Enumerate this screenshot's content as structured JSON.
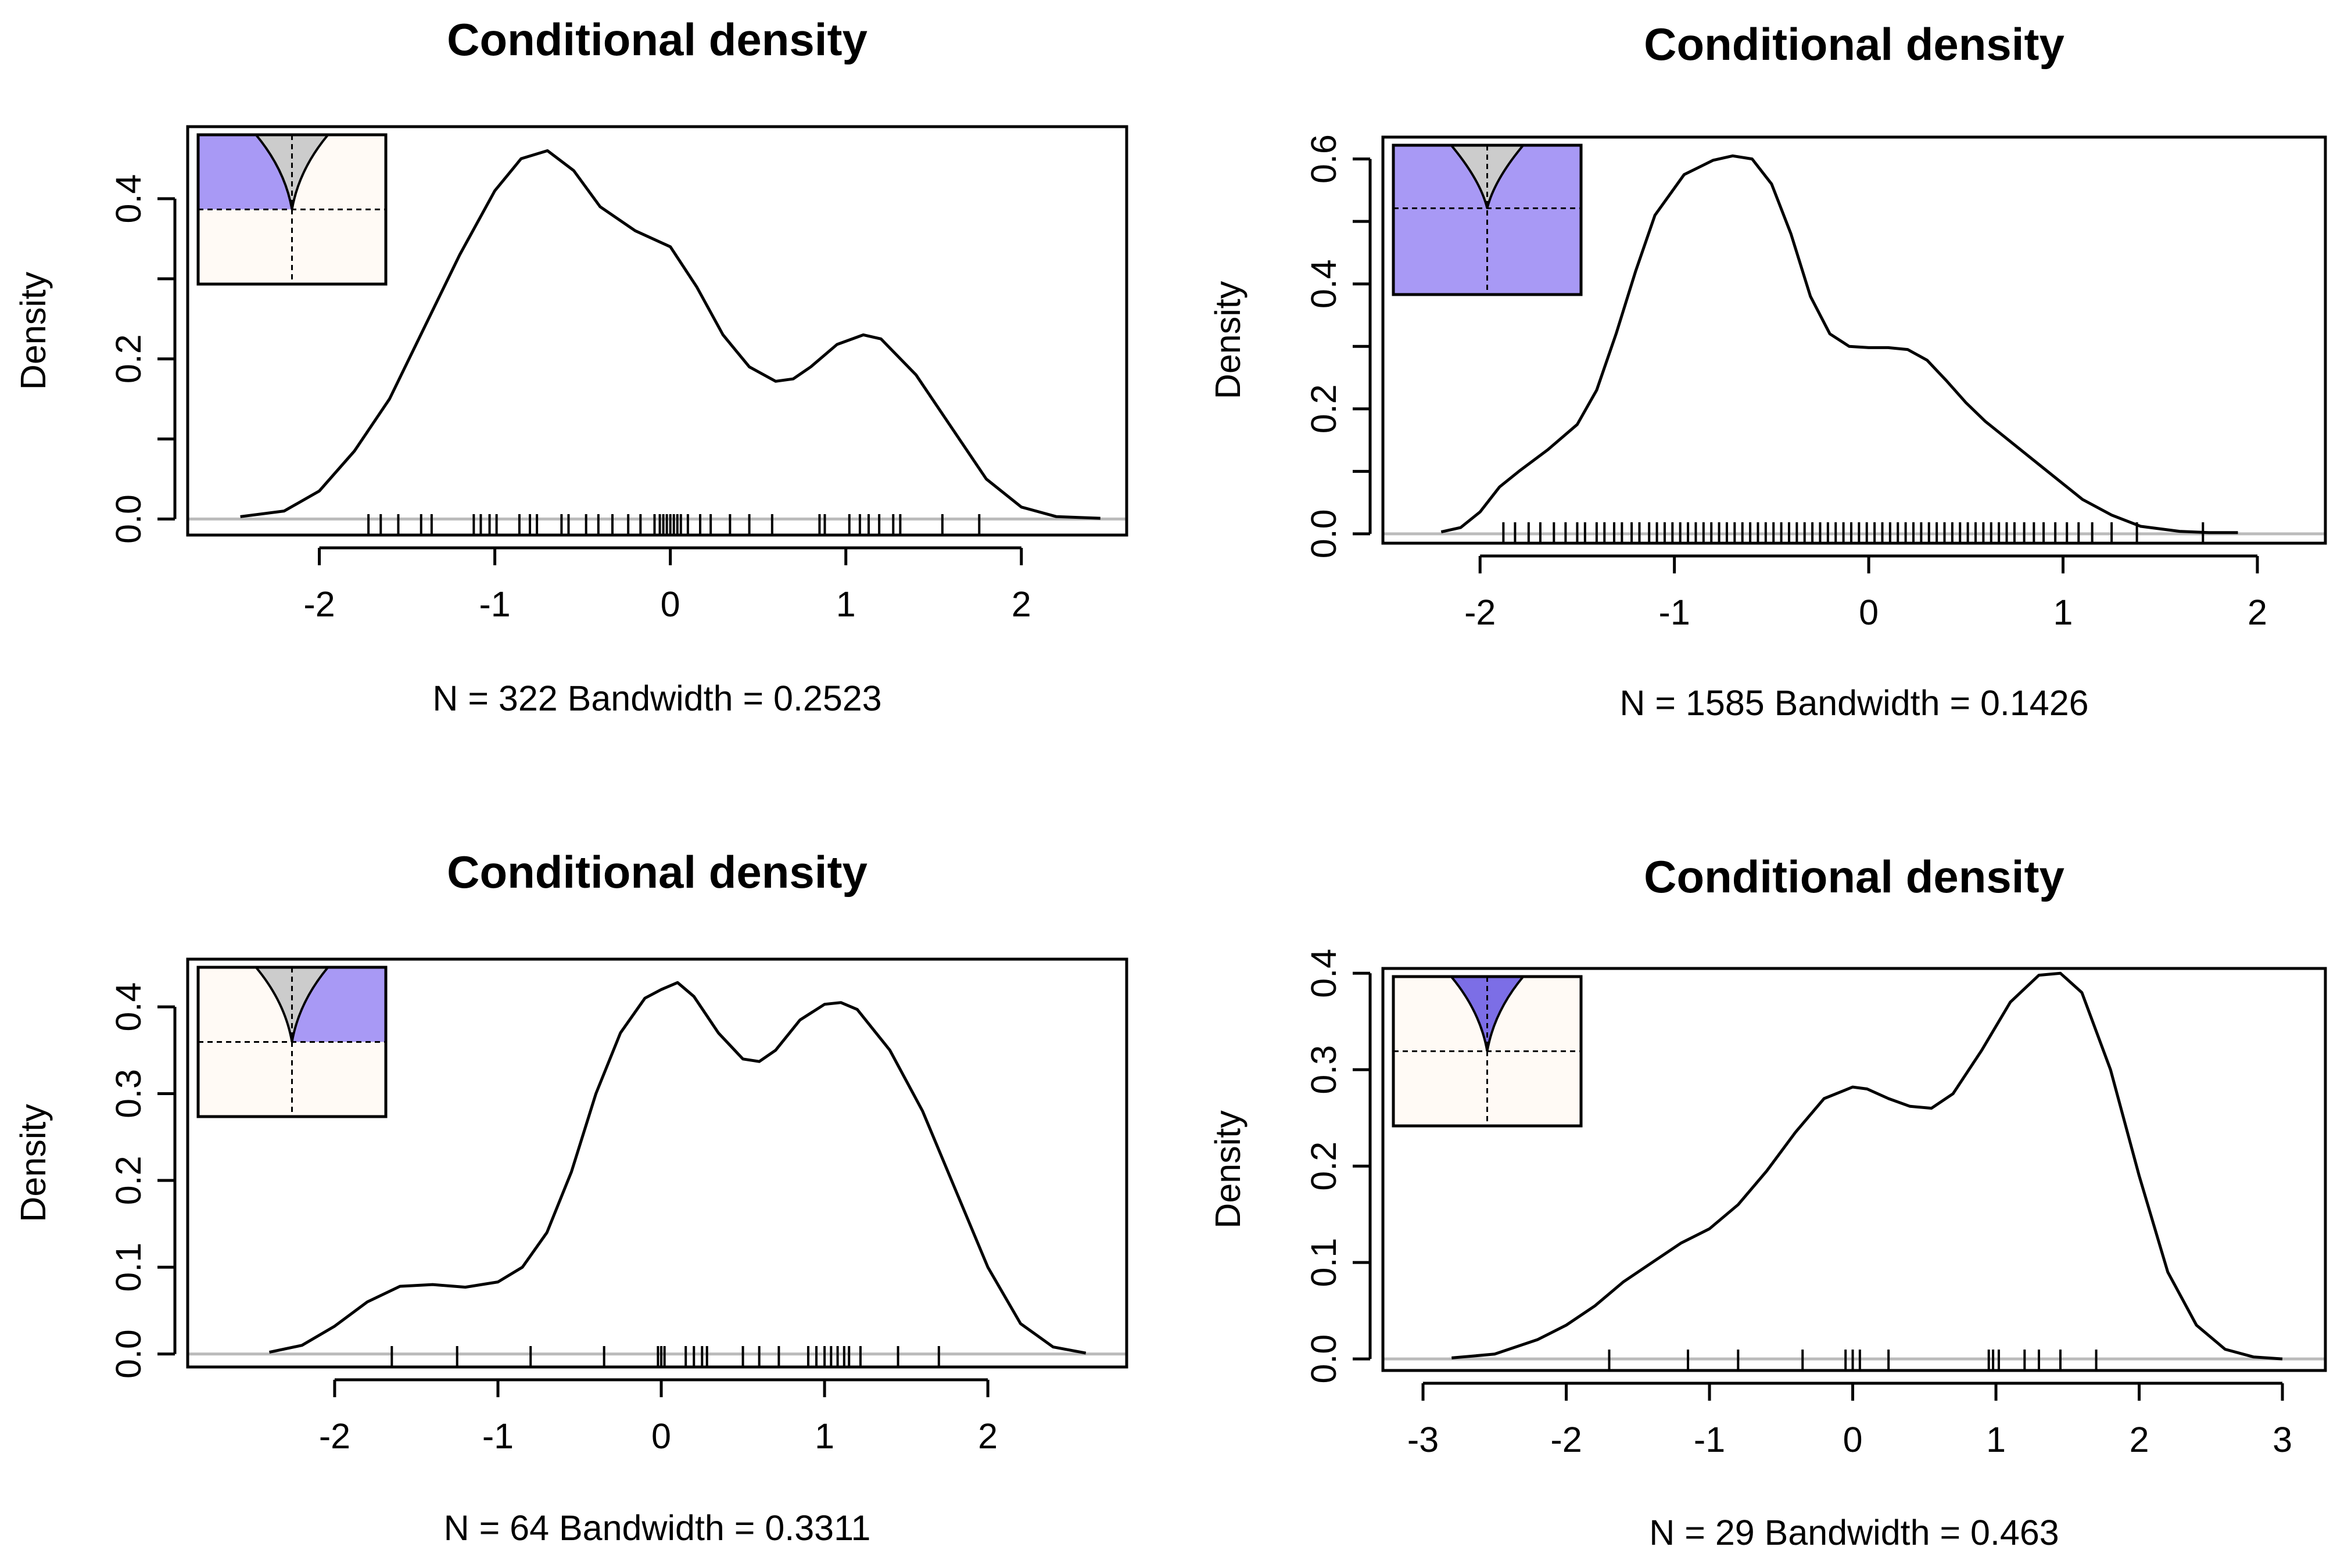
{
  "chart_data": [
    {
      "type": "line",
      "title": "Conditional density",
      "xlabel": "N = 322   Bandwidth = 0.2523",
      "ylabel": "Density",
      "xlim": [
        -2.75,
        2.6
      ],
      "ylim": [
        -0.02,
        0.49
      ],
      "xticks": [
        -2,
        -1,
        0,
        1,
        2
      ],
      "yticks": [
        0.0,
        0.2,
        0.4
      ],
      "yminor": [
        0.1,
        0.3
      ],
      "x": [
        -2.45,
        -2.2,
        -2.0,
        -1.8,
        -1.6,
        -1.4,
        -1.2,
        -1.0,
        -0.85,
        -0.7,
        -0.55,
        -0.4,
        -0.2,
        0.0,
        0.15,
        0.3,
        0.45,
        0.6,
        0.7,
        0.8,
        0.95,
        1.1,
        1.2,
        1.4,
        1.6,
        1.8,
        2.0,
        2.2,
        2.45
      ],
      "y": [
        0.003,
        0.01,
        0.035,
        0.085,
        0.15,
        0.24,
        0.33,
        0.41,
        0.45,
        0.46,
        0.435,
        0.39,
        0.36,
        0.34,
        0.29,
        0.23,
        0.19,
        0.172,
        0.175,
        0.19,
        0.218,
        0.23,
        0.225,
        0.18,
        0.115,
        0.05,
        0.015,
        0.003,
        0.001
      ],
      "rug": [
        -1.72,
        -1.65,
        -1.55,
        -1.42,
        -1.36,
        -1.12,
        -1.08,
        -1.03,
        -0.99,
        -0.86,
        -0.8,
        -0.76,
        -0.62,
        -0.58,
        -0.48,
        -0.41,
        -0.33,
        -0.24,
        -0.17,
        -0.09,
        -0.06,
        -0.04,
        -0.02,
        0.0,
        0.02,
        0.04,
        0.06,
        0.1,
        0.17,
        0.23,
        0.34,
        0.45,
        0.58,
        0.85,
        0.88,
        1.02,
        1.08,
        1.13,
        1.19,
        1.27,
        1.31,
        1.55,
        1.76
      ],
      "inset": {
        "mode": "left",
        "top_fill": "#a899f5",
        "bottom_fill": "#fffaf5",
        "cone_fill": "#cccccc"
      }
    },
    {
      "type": "line",
      "title": "Conditional density",
      "xlabel": "N = 1585   Bandwidth = 0.1426",
      "ylabel": "Density",
      "xlim": [
        -2.5,
        2.35
      ],
      "ylim": [
        -0.015,
        0.635
      ],
      "xticks": [
        -2,
        -1,
        0,
        1,
        2
      ],
      "yticks": [
        0.0,
        0.2,
        0.4,
        0.6
      ],
      "yminor": [
        0.1,
        0.3,
        0.5
      ],
      "x": [
        -2.2,
        -2.1,
        -2.0,
        -1.9,
        -1.8,
        -1.65,
        -1.5,
        -1.4,
        -1.3,
        -1.2,
        -1.1,
        -0.95,
        -0.8,
        -0.7,
        -0.6,
        -0.5,
        -0.4,
        -0.3,
        -0.2,
        -0.1,
        0.0,
        0.1,
        0.2,
        0.3,
        0.4,
        0.5,
        0.6,
        0.7,
        0.8,
        0.9,
        1.0,
        1.1,
        1.25,
        1.4,
        1.6,
        1.75,
        1.9
      ],
      "y": [
        0.003,
        0.01,
        0.035,
        0.075,
        0.1,
        0.135,
        0.175,
        0.23,
        0.32,
        0.42,
        0.51,
        0.575,
        0.598,
        0.605,
        0.6,
        0.56,
        0.48,
        0.38,
        0.32,
        0.3,
        0.298,
        0.298,
        0.295,
        0.278,
        0.245,
        0.21,
        0.18,
        0.155,
        0.13,
        0.105,
        0.08,
        0.055,
        0.03,
        0.012,
        0.004,
        0.002,
        0.002
      ],
      "rug": [
        -1.88,
        -1.82,
        -1.75,
        -1.69,
        -1.62,
        -1.56,
        -1.5,
        -1.46,
        -1.4,
        -1.36,
        -1.31,
        -1.27,
        -1.22,
        -1.18,
        -1.13,
        -1.09,
        -1.05,
        -1.01,
        -0.97,
        -0.93,
        -0.89,
        -0.85,
        -0.81,
        -0.77,
        -0.73,
        -0.69,
        -0.65,
        -0.61,
        -0.57,
        -0.53,
        -0.49,
        -0.45,
        -0.41,
        -0.37,
        -0.33,
        -0.29,
        -0.25,
        -0.21,
        -0.17,
        -0.13,
        -0.09,
        -0.05,
        -0.01,
        0.03,
        0.07,
        0.11,
        0.15,
        0.19,
        0.23,
        0.27,
        0.31,
        0.35,
        0.39,
        0.43,
        0.47,
        0.51,
        0.55,
        0.59,
        0.63,
        0.67,
        0.71,
        0.75,
        0.8,
        0.85,
        0.9,
        0.96,
        1.02,
        1.08,
        1.15,
        1.25,
        1.38,
        1.72
      ],
      "inset": {
        "mode": "bottom",
        "top_fill": "#a899f5",
        "bottom_fill": "#a899f5",
        "cone_fill": "#cccccc"
      }
    },
    {
      "type": "line",
      "title": "Conditional density",
      "xlabel": "N = 64   Bandwidth = 0.3311",
      "ylabel": "Density",
      "xlim": [
        -2.9,
        2.85
      ],
      "ylim": [
        -0.015,
        0.455
      ],
      "xticks": [
        -2,
        -1,
        0,
        1,
        2
      ],
      "yticks": [
        0.0,
        0.1,
        0.2,
        0.3,
        0.4
      ],
      "yminor": [],
      "x": [
        -2.4,
        -2.2,
        -2.0,
        -1.8,
        -1.6,
        -1.4,
        -1.2,
        -1.0,
        -0.85,
        -0.7,
        -0.55,
        -0.4,
        -0.25,
        -0.1,
        0.0,
        0.1,
        0.2,
        0.35,
        0.5,
        0.6,
        0.7,
        0.85,
        1.0,
        1.1,
        1.2,
        1.4,
        1.6,
        1.8,
        2.0,
        2.2,
        2.4,
        2.6
      ],
      "y": [
        0.002,
        0.01,
        0.032,
        0.06,
        0.078,
        0.08,
        0.077,
        0.083,
        0.1,
        0.14,
        0.21,
        0.3,
        0.37,
        0.41,
        0.42,
        0.428,
        0.412,
        0.37,
        0.34,
        0.337,
        0.35,
        0.385,
        0.403,
        0.405,
        0.397,
        0.35,
        0.28,
        0.19,
        0.1,
        0.035,
        0.008,
        0.001
      ],
      "rug": [
        -1.65,
        -1.25,
        -0.8,
        -0.35,
        -0.02,
        0.0,
        0.02,
        0.15,
        0.2,
        0.25,
        0.28,
        0.5,
        0.6,
        0.72,
        0.9,
        0.95,
        1.0,
        1.04,
        1.08,
        1.12,
        1.15,
        1.22,
        1.45,
        1.7
      ],
      "inset": {
        "mode": "right",
        "top_fill": "#a899f5",
        "bottom_fill": "#fffaf5",
        "cone_fill": "#cccccc"
      }
    },
    {
      "type": "line",
      "title": "Conditional density",
      "xlabel": "N = 29   Bandwidth = 0.463",
      "ylabel": "Density",
      "xlim": [
        -3.28,
        3.3
      ],
      "ylim": [
        -0.012,
        0.405
      ],
      "xticks": [
        -3,
        -2,
        -1,
        0,
        1,
        2,
        3
      ],
      "yticks": [
        0.0,
        0.1,
        0.2,
        0.3,
        0.4
      ],
      "yminor": [],
      "x": [
        -2.8,
        -2.5,
        -2.2,
        -2.0,
        -1.8,
        -1.6,
        -1.4,
        -1.2,
        -1.0,
        -0.8,
        -0.6,
        -0.4,
        -0.2,
        0.0,
        0.1,
        0.25,
        0.4,
        0.55,
        0.7,
        0.9,
        1.1,
        1.3,
        1.45,
        1.6,
        1.8,
        2.0,
        2.2,
        2.4,
        2.6,
        2.8,
        3.0
      ],
      "y": [
        0.001,
        0.005,
        0.02,
        0.035,
        0.055,
        0.08,
        0.1,
        0.12,
        0.135,
        0.16,
        0.195,
        0.235,
        0.27,
        0.282,
        0.28,
        0.27,
        0.262,
        0.26,
        0.275,
        0.32,
        0.37,
        0.398,
        0.4,
        0.38,
        0.3,
        0.19,
        0.09,
        0.035,
        0.01,
        0.002,
        0.0
      ],
      "rug": [
        -1.7,
        -1.15,
        -0.8,
        -0.35,
        -0.05,
        0.0,
        0.05,
        0.25,
        0.95,
        0.98,
        1.02,
        1.2,
        1.3,
        1.45,
        1.7
      ],
      "inset": {
        "mode": "cone",
        "top_fill": "#a899f5",
        "bottom_fill": "#fffaf5",
        "cone_fill": "#7c6ee6"
      }
    }
  ]
}
